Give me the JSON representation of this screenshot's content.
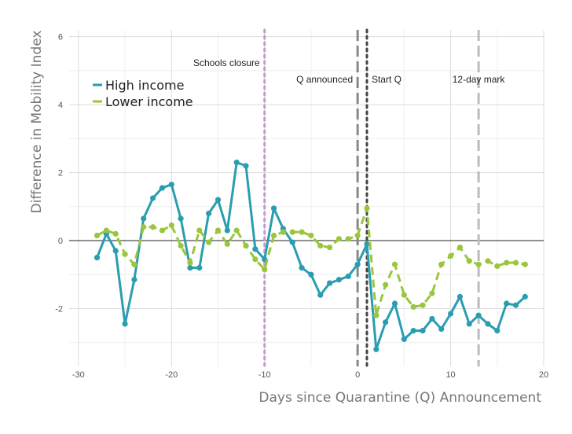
{
  "chart_data": {
    "type": "line",
    "xlabel": "Days since Quarantine (Q) Announcement",
    "ylabel": "Difference in Mobility Index",
    "xlim": [
      -31,
      20
    ],
    "ylim": [
      -3.7,
      6.2
    ],
    "x_ticks": [
      -30,
      -20,
      -10,
      0,
      10,
      20
    ],
    "y_ticks": [
      -2,
      0,
      2,
      4,
      6
    ],
    "x_tick_labels": [
      "-30",
      "-20",
      "-10",
      "0",
      "10",
      "20"
    ],
    "y_tick_labels": [
      "-2",
      "0",
      "2",
      "4",
      "6"
    ],
    "grid": true,
    "zero_line": true,
    "legend_position": "top-left",
    "series": [
      {
        "name": "High income",
        "color": "#2a9db0",
        "style": "solid",
        "x": [
          -28,
          -27,
          -26,
          -25,
          -24,
          -23,
          -22,
          -21,
          -20,
          -19,
          -18,
          -17,
          -16,
          -15,
          -14,
          -13,
          -12,
          -11,
          -10,
          -9,
          -8,
          -7,
          -6,
          -5,
          -4,
          -3,
          -2,
          -1,
          0,
          1,
          2,
          3,
          4,
          5,
          6,
          7,
          8,
          9,
          10,
          11,
          12,
          13,
          14,
          15,
          16,
          17,
          18
        ],
        "values": [
          -0.5,
          0.2,
          -0.3,
          -2.45,
          -1.15,
          0.65,
          1.25,
          1.55,
          1.65,
          0.65,
          -0.8,
          -0.8,
          0.8,
          1.2,
          0.3,
          2.3,
          2.2,
          -0.25,
          -0.55,
          0.95,
          0.35,
          -0.05,
          -0.8,
          -1.0,
          -1.6,
          -1.25,
          -1.15,
          -1.05,
          -0.7,
          -0.1,
          -3.2,
          -2.4,
          -1.85,
          -2.9,
          -2.65,
          -2.65,
          -2.3,
          -2.6,
          -2.15,
          -1.65,
          -2.45,
          -2.2,
          -2.45,
          -2.65,
          -1.85,
          -1.9,
          -1.65
        ]
      },
      {
        "name": "Lower income",
        "color": "#9ac63d",
        "style": "dashed",
        "x": [
          -28,
          -27,
          -26,
          -25,
          -24,
          -23,
          -22,
          -21,
          -20,
          -19,
          -18,
          -17,
          -16,
          -15,
          -14,
          -13,
          -12,
          -11,
          -10,
          -9,
          -8,
          -7,
          -6,
          -5,
          -4,
          -3,
          -2,
          -1,
          0,
          1,
          2,
          3,
          4,
          5,
          6,
          7,
          8,
          9,
          10,
          11,
          12,
          13,
          14,
          15,
          16,
          17,
          18
        ],
        "values": [
          0.15,
          0.3,
          0.2,
          -0.4,
          -0.7,
          0.4,
          0.4,
          0.3,
          0.45,
          -0.15,
          -0.65,
          0.3,
          -0.05,
          0.3,
          -0.1,
          0.3,
          -0.15,
          -0.55,
          -0.85,
          0.15,
          0.25,
          0.25,
          0.25,
          0.15,
          -0.15,
          -0.2,
          0.05,
          0.05,
          0.15,
          0.95,
          -2.2,
          -1.3,
          -0.7,
          -1.6,
          -1.95,
          -1.9,
          -1.55,
          -0.7,
          -0.45,
          -0.2,
          -0.6,
          -0.7,
          -0.6,
          -0.75,
          -0.65,
          -0.65,
          -0.7
        ]
      }
    ],
    "vlines": [
      {
        "x": -10,
        "label": "Schools closure",
        "color": "#c995d2",
        "style": "dotted"
      },
      {
        "x": 0,
        "label": "Q announced",
        "color": "#888888",
        "style": "dashed"
      },
      {
        "x": 1,
        "label": "Start Q",
        "color": "#444444",
        "style": "dotted"
      },
      {
        "x": 13,
        "label": "12-day mark",
        "color": "#bbbbbb",
        "style": "dashed"
      }
    ]
  }
}
